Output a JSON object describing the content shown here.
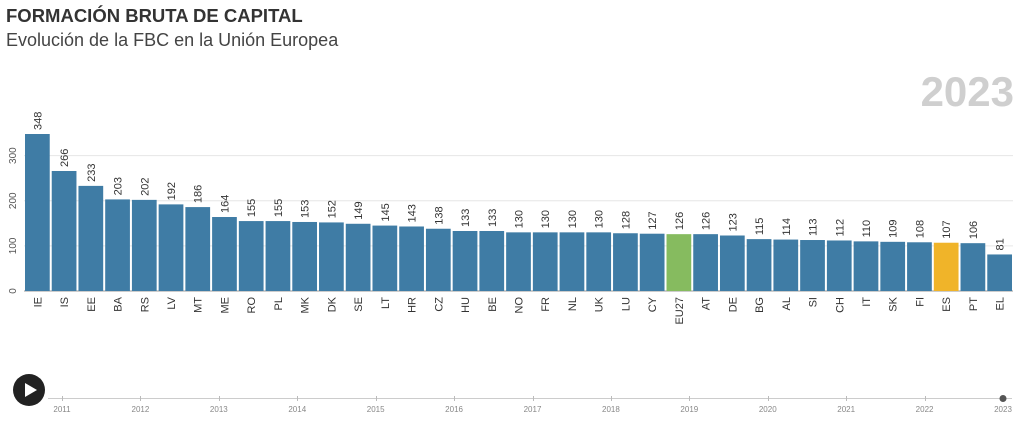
{
  "header": {
    "title": "FORMACIÓN BRUTA DE CAPITAL",
    "subtitle": "Evolución de la FBC en la Unión Europea",
    "current_year": "2023"
  },
  "colors": {
    "bar": "#3f7ca5",
    "eu_average": "#86bb5f",
    "highlight": "#f0b429",
    "grid": "#e6e6e6",
    "text": "#333333"
  },
  "controls": {
    "play_icon": "play-icon"
  },
  "timeline": {
    "years": [
      "2011",
      "2012",
      "2013",
      "2014",
      "2015",
      "2016",
      "2017",
      "2018",
      "2019",
      "2020",
      "2021",
      "2022",
      "2023"
    ],
    "selected": "2023"
  },
  "chart_data": {
    "type": "bar",
    "title": "FORMACIÓN BRUTA DE CAPITAL",
    "subtitle": "Evolución de la FBC en la Unión Europea",
    "xlabel": "",
    "ylabel": "",
    "ylim": [
      0,
      348
    ],
    "yticks": [
      0,
      100,
      200,
      300
    ],
    "grid": true,
    "categories": [
      "IE",
      "IS",
      "EE",
      "BA",
      "RS",
      "LV",
      "MT",
      "ME",
      "RO",
      "PL",
      "MK",
      "DK",
      "SE",
      "LT",
      "HR",
      "CZ",
      "HU",
      "BE",
      "NO",
      "FR",
      "NL",
      "UK",
      "LU",
      "CY",
      "EU27",
      "AT",
      "DE",
      "BG",
      "AL",
      "SI",
      "CH",
      "IT",
      "SK",
      "FI",
      "ES",
      "PT",
      "EL"
    ],
    "values": [
      348,
      266,
      233,
      203,
      202,
      192,
      186,
      164,
      155,
      155,
      153,
      152,
      149,
      145,
      143,
      138,
      133,
      133,
      130,
      130,
      130,
      130,
      128,
      127,
      126,
      126,
      123,
      115,
      114,
      113,
      112,
      110,
      109,
      108,
      107,
      106,
      81
    ],
    "highlight": {
      "EU27": "eu_average",
      "ES": "highlight"
    }
  }
}
